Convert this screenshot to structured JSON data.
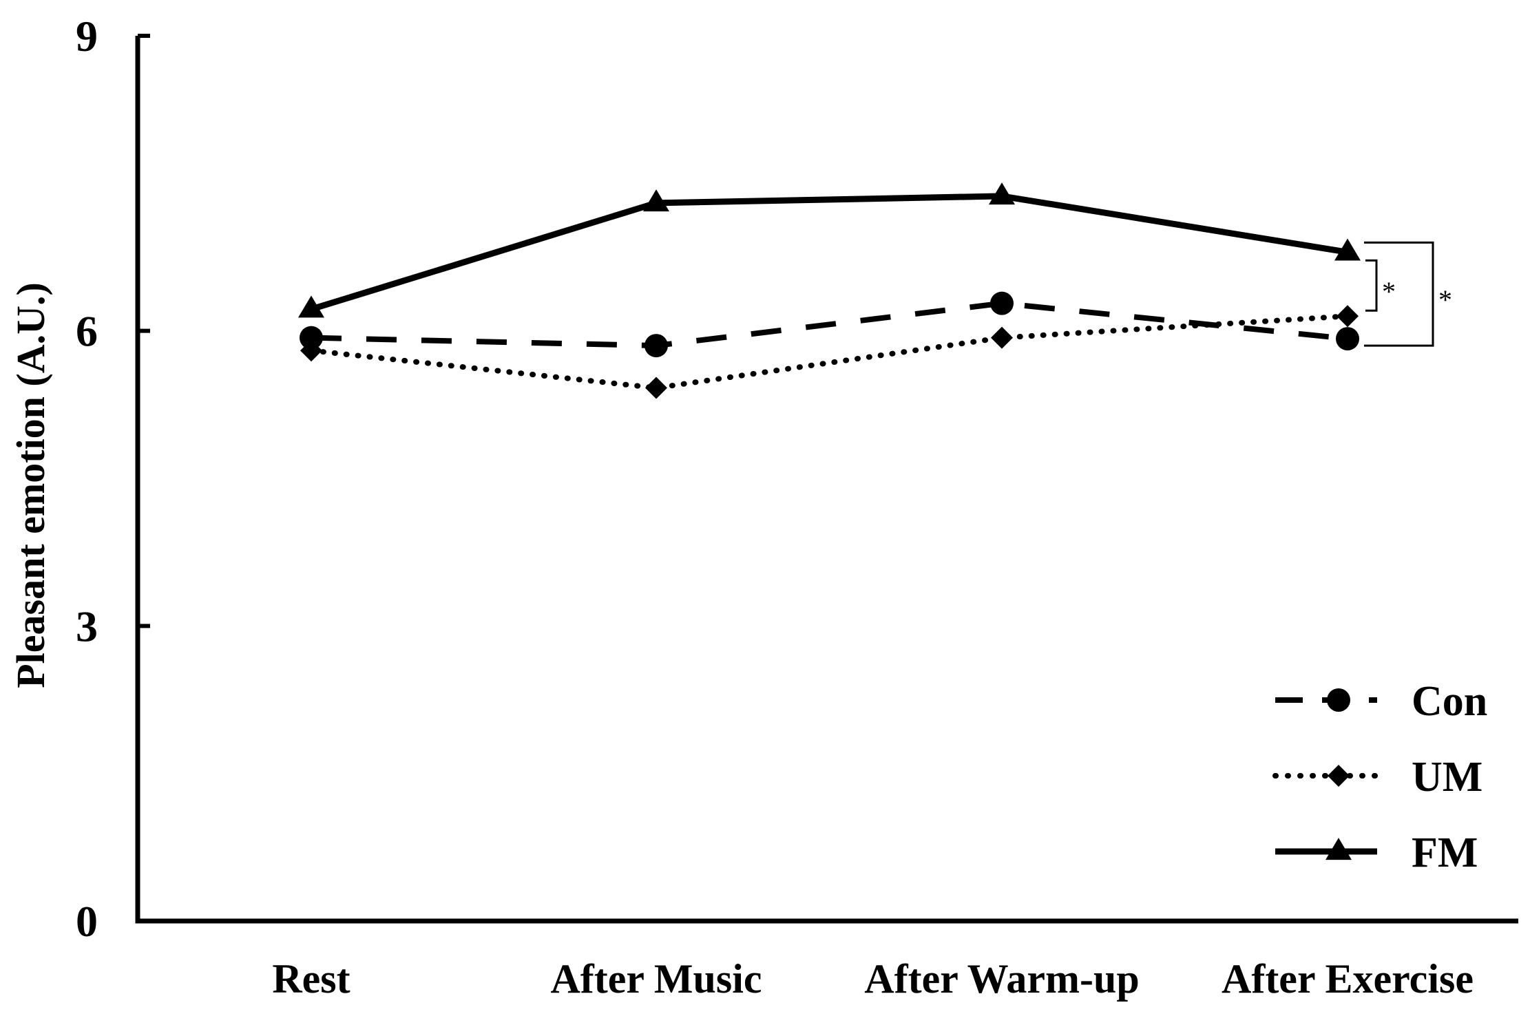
{
  "chart_data": {
    "type": "line",
    "title": "",
    "xlabel": "",
    "ylabel": "Pleasant emotion (A.U.)",
    "ylim": [
      0,
      9
    ],
    "yticks": [
      "0",
      "3",
      "6",
      "9"
    ],
    "categories": [
      "Rest",
      "After Music",
      "After Warm-up",
      "After Exercise"
    ],
    "grid": false,
    "legend_position": "bottom-right",
    "series": [
      {
        "name": "Con",
        "values": [
          5.93,
          5.85,
          6.28,
          5.92
        ],
        "line_style": "dashed",
        "marker": "circle",
        "color": "#000000"
      },
      {
        "name": "UM",
        "values": [
          5.8,
          5.42,
          5.93,
          6.15
        ],
        "line_style": "dotted",
        "marker": "diamond",
        "color": "#000000"
      },
      {
        "name": "FM",
        "values": [
          6.22,
          7.3,
          7.37,
          6.8
        ],
        "line_style": "solid",
        "marker": "triangle",
        "color": "#000000"
      }
    ],
    "significance": [
      {
        "category": "After Exercise",
        "between": [
          "FM",
          "UM"
        ],
        "label": "*"
      },
      {
        "category": "After Exercise",
        "between": [
          "FM",
          "Con"
        ],
        "label": "*"
      }
    ]
  }
}
